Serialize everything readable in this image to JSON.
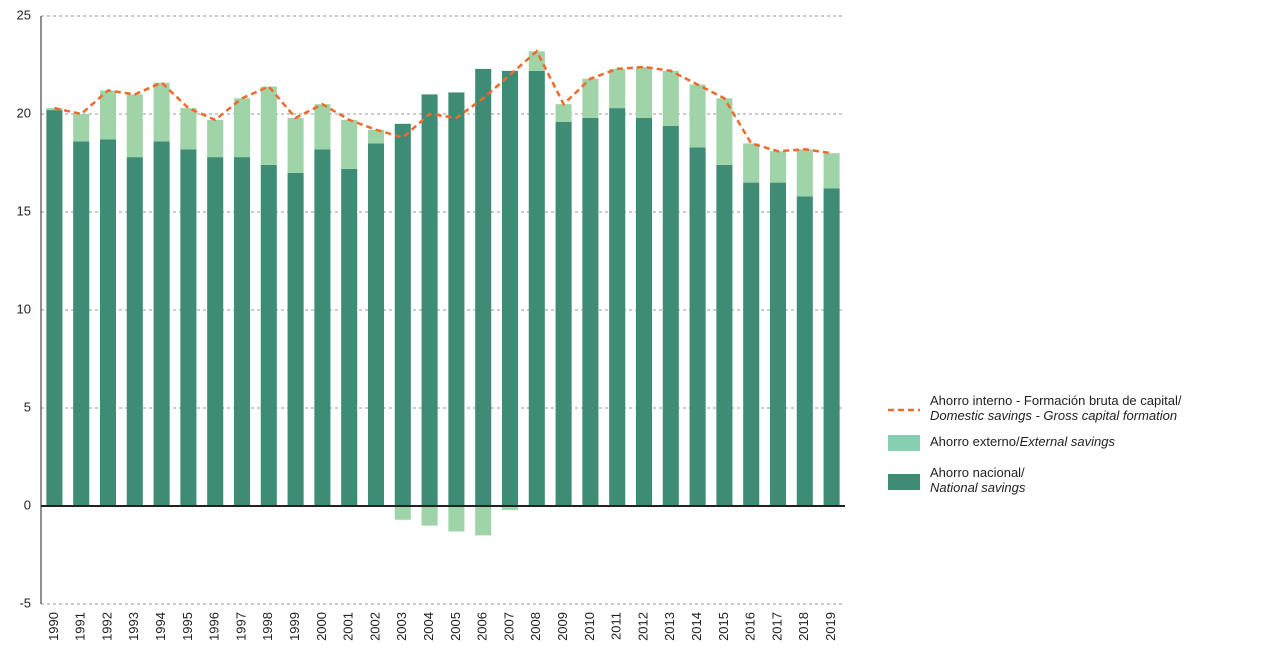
{
  "chart_data": {
    "type": "bar",
    "categories": [
      "1990",
      "1991",
      "1992",
      "1993",
      "1994",
      "1995",
      "1996",
      "1997",
      "1998",
      "1999",
      "2000",
      "2001",
      "2002",
      "2003",
      "2004",
      "2005",
      "2006",
      "2007",
      "2008",
      "2009",
      "2010",
      "2011",
      "2012",
      "2013",
      "2014",
      "2015",
      "2016",
      "2017",
      "2018",
      "2019"
    ],
    "stacked": true,
    "series": [
      {
        "name": "Ahorro nacional/National savings",
        "color": "#3f8c76",
        "kind": "bar",
        "values": [
          20.2,
          18.6,
          18.7,
          17.8,
          18.6,
          18.2,
          17.8,
          17.8,
          17.4,
          17.0,
          18.2,
          17.2,
          18.5,
          19.5,
          21.0,
          21.1,
          22.3,
          22.2,
          22.2,
          19.6,
          19.8,
          20.3,
          19.8,
          19.4,
          18.3,
          17.4,
          16.5,
          16.5,
          15.8,
          16.2
        ]
      },
      {
        "name": "Ahorro externo/External savings",
        "color": "#9fd4a8",
        "kind": "bar",
        "values": [
          0.1,
          1.4,
          2.5,
          3.2,
          3.0,
          2.1,
          1.9,
          3.0,
          4.0,
          2.8,
          2.3,
          2.5,
          0.7,
          -0.7,
          -1.0,
          -1.3,
          -1.5,
          -0.2,
          1.0,
          0.9,
          2.0,
          2.0,
          2.6,
          2.8,
          3.2,
          3.4,
          2.0,
          1.6,
          2.4,
          1.8
        ]
      },
      {
        "name": "Ahorro interno - Formación bruta de capital/Domestic savings - Gross capital formation",
        "color": "#ef6a2b",
        "kind": "line",
        "values": [
          20.3,
          20.0,
          21.2,
          21.0,
          21.6,
          20.3,
          19.7,
          20.8,
          21.4,
          19.8,
          20.5,
          19.7,
          19.2,
          18.8,
          20.0,
          19.8,
          20.8,
          22.0,
          23.2,
          20.5,
          21.8,
          22.3,
          22.4,
          22.2,
          21.5,
          20.8,
          18.5,
          18.1,
          18.2,
          18.0
        ]
      }
    ],
    "ylim": [
      -5,
      25
    ],
    "yticks": [
      -5,
      0,
      5,
      10,
      15,
      20,
      25
    ],
    "grid": true
  }
}
